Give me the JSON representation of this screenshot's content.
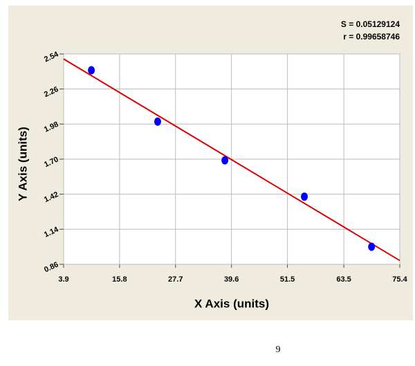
{
  "chart_data": {
    "type": "scatter",
    "x_label": "X Axis (units)",
    "y_label": "Y Axis (units)",
    "annotations": [
      "S = 0.05129124",
      "r = 0.99658746"
    ],
    "x": [
      9.8,
      23.9,
      38.2,
      55.1,
      69.4
    ],
    "values": [
      2.41,
      2.0,
      1.69,
      1.4,
      1.0
    ],
    "color": "#0000ff",
    "fit_line": {
      "x": [
        3.9,
        75.4
      ],
      "values": [
        2.5,
        0.89
      ],
      "color": "#dd0000"
    },
    "xlim": [
      3.9,
      75.4
    ],
    "xticks": [
      3.9,
      15.8,
      27.7,
      39.6,
      51.5,
      63.5,
      75.4
    ],
    "ylim": [
      0.86,
      2.54
    ],
    "yticks": [
      0.86,
      1.14,
      1.42,
      {
        "value": 1.7,
        "label": "1.70"
      },
      1.98,
      2.26,
      2.54
    ],
    "grid": true
  },
  "page_number": "9"
}
